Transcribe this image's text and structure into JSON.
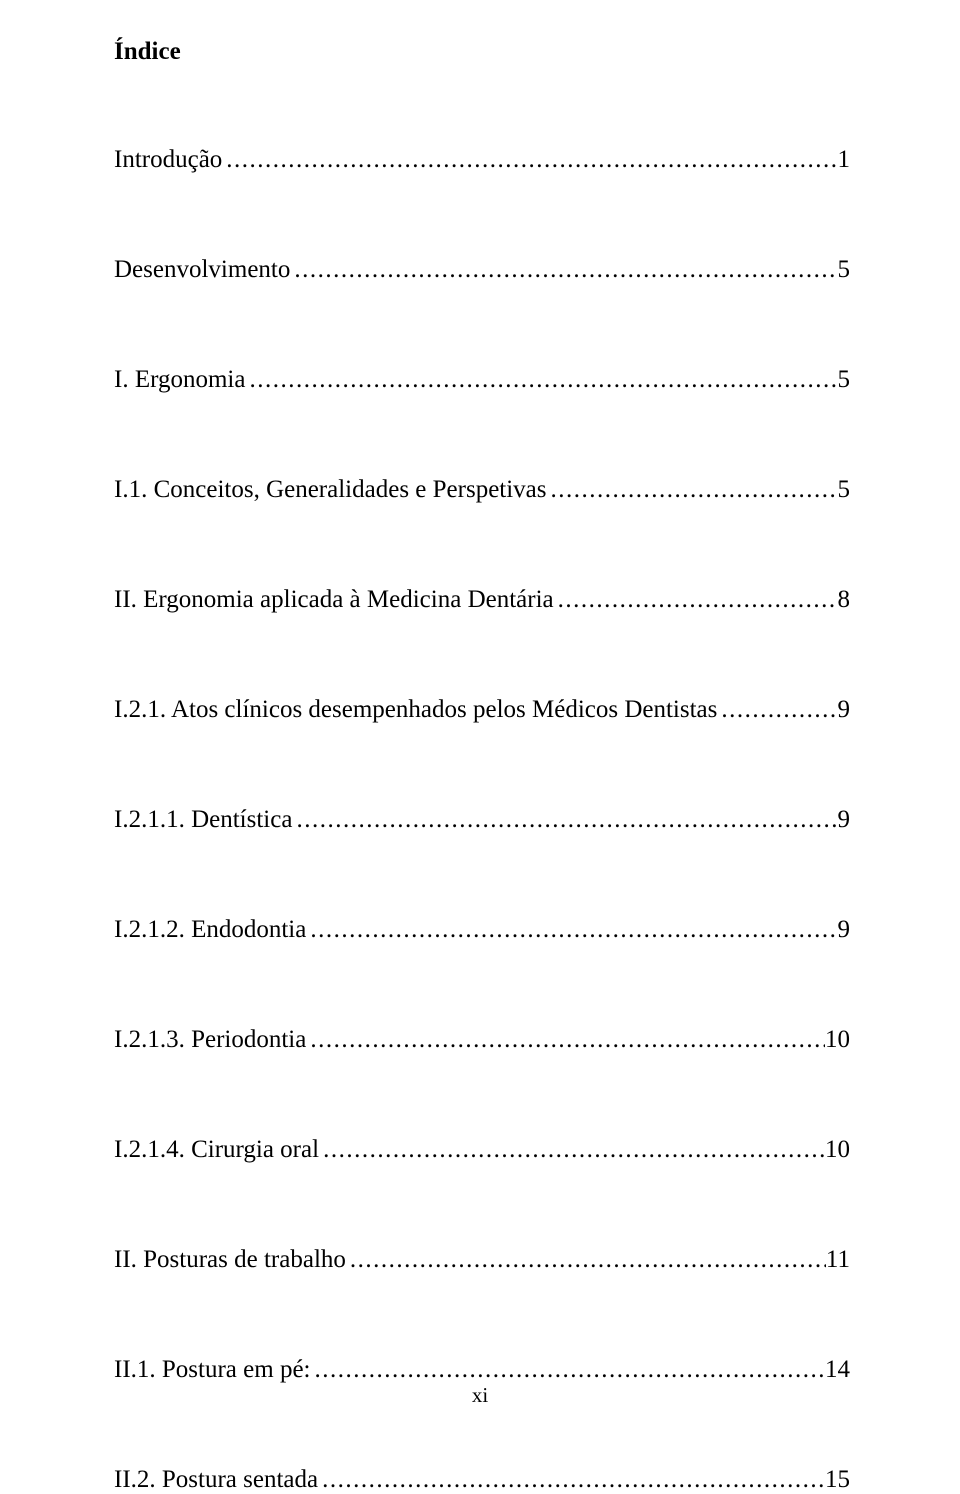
{
  "heading": "Índice",
  "entries": [
    {
      "label": "Introdução",
      "page": "1"
    },
    {
      "label": "Desenvolvimento",
      "page": "5"
    },
    {
      "label": "I. Ergonomia",
      "page": "5"
    },
    {
      "label": "I.1. Conceitos, Generalidades e Perspetivas",
      "page": "5"
    },
    {
      "label": "II. Ergonomia aplicada à Medicina Dentária",
      "page": "8"
    },
    {
      "label": "I.2.1. Atos clínicos desempenhados pelos Médicos Dentistas",
      "page": "9"
    },
    {
      "label": "I.2.1.1. Dentística",
      "page": "9"
    },
    {
      "label": "I.2.1.2. Endodontia",
      "page": "9"
    },
    {
      "label": "I.2.1.3. Periodontia",
      "page": "10"
    },
    {
      "label": "I.2.1.4. Cirurgia oral",
      "page": "10"
    },
    {
      "label": "II. Posturas de trabalho",
      "page": "11"
    },
    {
      "label": "II.1. Postura em pé:",
      "page": "14"
    },
    {
      "label": "II.2.  Postura sentada",
      "page": "15"
    }
  ],
  "footer": "xi"
}
